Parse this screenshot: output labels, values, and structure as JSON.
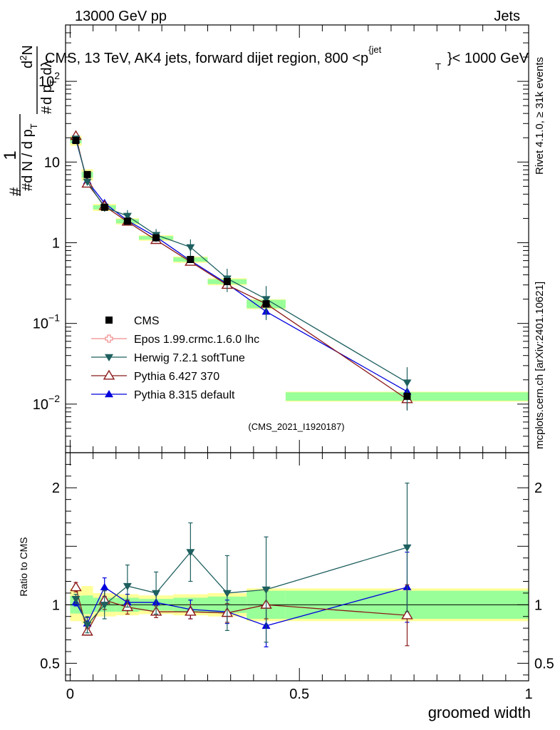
{
  "header": {
    "energy_label": "13000 GeV pp",
    "category_label": "Jets",
    "title_main": "CMS, 13 TeV, AK4 jets, forward dijet region, 800 <p",
    "title_sup": "{jet",
    "title_sub": "T",
    "title_end": "}< 1000 GeV",
    "rivet_label": "Rivet 4.1.0, ≥ 31k events",
    "mcplots_label": "mcplots.cern.ch [arXiv:2401.10621]",
    "analysis_id": "(CMS_2021_I1920187)"
  },
  "y_axis": {
    "lead_hash": "#",
    "num_one": "1",
    "den_hash": "#",
    "den_text": "d N / d p",
    "den_sub": "T",
    "num2_hash": "#",
    "num2_text": "d p",
    "num2_sub": "T",
    "num2_end": " dλ",
    "top_text": "d",
    "top_sup": "2",
    "top_end": "N"
  },
  "ratio_label": "Ratio to CMS",
  "colors": {
    "cms": "#000000",
    "epos": "#f08c8c",
    "herwig": "#1e5f5f",
    "pythia6": "#8b1a1a",
    "pythia8": "#0000dd",
    "band_inner": "#99ff99",
    "band_outer": "#ffff99"
  },
  "chart_data": {
    "type": "scatter",
    "xlabel": "groomed width",
    "x_ticks": [
      "0",
      "0.5",
      "1"
    ],
    "xlim": [
      -0.01,
      1.0
    ],
    "main": {
      "yscale": "log",
      "ylim": [
        0.0025,
        500
      ],
      "y_ticks": [
        {
          "value": 0.01,
          "base": "10",
          "exp": "−2"
        },
        {
          "value": 0.1,
          "base": "10",
          "exp": "−1"
        },
        {
          "value": 1,
          "base": "1",
          "exp": ""
        },
        {
          "value": 10,
          "base": "10",
          "exp": ""
        },
        {
          "value": 100,
          "base": "10",
          "exp": "2"
        }
      ]
    },
    "ratio": {
      "ylim": [
        0.35,
        2.3
      ],
      "y_ticks": [
        "0.5",
        "1",
        "2"
      ],
      "y_tick_values": [
        0.5,
        1,
        2
      ]
    },
    "bins": [
      [
        0.0,
        0.025
      ],
      [
        0.025,
        0.05
      ],
      [
        0.05,
        0.1
      ],
      [
        0.1,
        0.15
      ],
      [
        0.15,
        0.225
      ],
      [
        0.225,
        0.3
      ],
      [
        0.3,
        0.385
      ],
      [
        0.385,
        0.47
      ],
      [
        0.47,
        1.0
      ]
    ],
    "x": [
      0.0125,
      0.0375,
      0.075,
      0.125,
      0.1875,
      0.2625,
      0.3425,
      0.4275,
      0.735
    ],
    "data": {
      "name": "CMS",
      "values": [
        18.5,
        7.0,
        2.75,
        1.85,
        1.15,
        0.62,
        0.33,
        0.175,
        0.0125
      ],
      "band_inner": [
        0.075,
        0.08,
        0.06,
        0.06,
        0.05,
        0.06,
        0.07,
        0.12,
        0.12
      ],
      "band_outer": [
        0.14,
        0.16,
        0.1,
        0.09,
        0.08,
        0.09,
        0.1,
        0.14,
        0.14
      ]
    },
    "series": [
      {
        "name": "Epos 1.99.crmc.1.6.0 lhc",
        "key": "epos",
        "marker": "cross-open",
        "values": [],
        "ratio": [],
        "ratio_err": []
      },
      {
        "name": "Herwig 7.2.1 softTune",
        "key": "herwig",
        "marker": "triangle-down",
        "values": [
          19.5,
          5.7,
          2.75,
          2.15,
          1.25,
          0.88,
          0.36,
          0.2,
          0.0185
        ],
        "ratio": [
          1.05,
          0.83,
          1.0,
          1.16,
          1.1,
          1.45,
          1.1,
          1.13,
          1.49
        ],
        "ratio_err": [
          0.04,
          0.07,
          0.12,
          0.18,
          0.18,
          0.25,
          0.32,
          0.45,
          0.55
        ]
      },
      {
        "name": "Pythia 6.427 370",
        "key": "pythia6",
        "marker": "triangle-open",
        "values": [
          21.0,
          5.4,
          2.85,
          1.82,
          1.08,
          0.58,
          0.3,
          0.175,
          0.0115
        ],
        "ratio": [
          1.15,
          0.77,
          1.04,
          0.98,
          0.94,
          0.94,
          0.93,
          1.0,
          0.91
        ],
        "ratio_err": [
          0.04,
          0.03,
          0.08,
          0.06,
          0.05,
          0.06,
          0.08,
          0.12,
          0.26
        ]
      },
      {
        "name": "Pythia 8.315 default",
        "key": "pythia8",
        "marker": "triangle",
        "values": [
          19.0,
          5.8,
          3.1,
          1.88,
          1.18,
          0.6,
          0.31,
          0.14,
          0.0143
        ],
        "ratio": [
          1.02,
          0.84,
          1.15,
          1.02,
          1.02,
          0.96,
          0.94,
          0.82,
          1.15
        ],
        "ratio_err": [
          0.03,
          0.05,
          0.08,
          0.07,
          0.07,
          0.08,
          0.1,
          0.18,
          0.3
        ]
      }
    ]
  }
}
